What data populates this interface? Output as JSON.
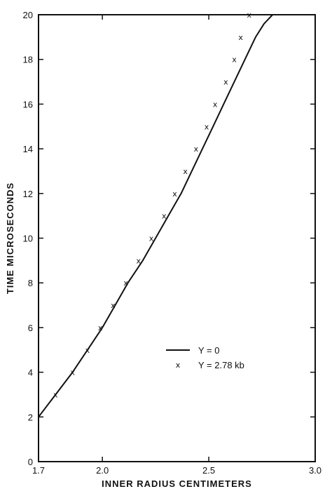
{
  "chart_data": {
    "type": "line",
    "xlabel": "INNER RADIUS CENTIMETERS",
    "ylabel": "TIME MICROSECONDS",
    "xlim": [
      1.7,
      3.0
    ],
    "ylim": [
      0,
      20
    ],
    "xticks": [
      1.7,
      2.0,
      2.5,
      3.0
    ],
    "xtick_labels": [
      "1.7",
      "2.0",
      "2.5",
      "3.0"
    ],
    "yticks": [
      0,
      2,
      4,
      6,
      8,
      10,
      12,
      14,
      16,
      18,
      20
    ],
    "ytick_labels": [
      "0",
      "2",
      "4",
      "6",
      "8",
      "10",
      "12",
      "14",
      "16",
      "18",
      "20"
    ],
    "grid": false,
    "legend_position": "center-right",
    "series": [
      {
        "name": "Y = 0",
        "style": "solid-line",
        "color": "#111111",
        "x": [
          1.7,
          1.78,
          1.86,
          1.93,
          2.0,
          2.06,
          2.12,
          2.19,
          2.25,
          2.31,
          2.37,
          2.42,
          2.47,
          2.52,
          2.57,
          2.62,
          2.67,
          2.72,
          2.76,
          2.8
        ],
        "y": [
          2,
          3,
          4,
          5,
          6,
          7,
          8,
          9,
          10,
          11,
          12,
          13,
          14,
          15,
          16,
          17,
          18,
          19,
          19.6,
          20
        ]
      },
      {
        "name": "Y = 2.78 kb",
        "style": "x-marker",
        "marker": "x",
        "color": "#111111",
        "x": [
          1.78,
          1.86,
          1.93,
          1.99,
          2.05,
          2.11,
          2.17,
          2.23,
          2.29,
          2.34,
          2.39,
          2.44,
          2.49,
          2.53,
          2.58,
          2.62,
          2.65,
          2.69
        ],
        "y": [
          3,
          4,
          5,
          6,
          7,
          8,
          9,
          10,
          11,
          12,
          13,
          14,
          15,
          16,
          17,
          18,
          19,
          20
        ]
      }
    ]
  }
}
